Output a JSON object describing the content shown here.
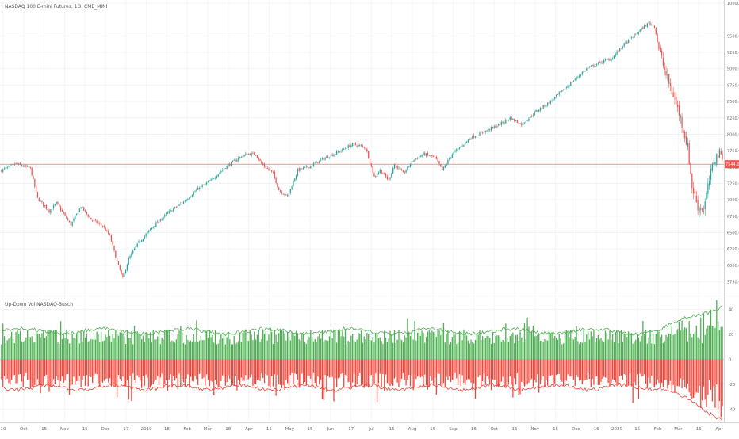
{
  "chart_data": [
    {
      "type": "candlestick",
      "title": "NASDAQ 100 E-mini Futures, 1D, CME_MINI",
      "ylim": [
        5600,
        10000
      ],
      "y_ticks": [
        5750,
        6000,
        6250,
        6500,
        6750,
        7000,
        7250,
        7500,
        7750,
        8000,
        8250,
        8500,
        8750,
        9000,
        9250,
        9500,
        10000
      ],
      "y_tick_labels": [
        "5750.00",
        "6000.00",
        "6250.00",
        "6500.00",
        "6750.00",
        "7000.00",
        "7250.00",
        "7500.00",
        "7750.00",
        "8000.00",
        "8250.00",
        "8500.00",
        "8750.00",
        "9000.00",
        "9250.00",
        "9500.00",
        "10000.00"
      ],
      "last_price": 7544.0,
      "last_price_label": "7544.00",
      "last_price_color": "#ef5350",
      "up_color": "#26a69a",
      "down_color": "#ef5350",
      "close_path": [
        [
          0,
          7450
        ],
        [
          10,
          7550
        ],
        [
          20,
          7480
        ],
        [
          25,
          7020
        ],
        [
          33,
          6830
        ],
        [
          38,
          6950
        ],
        [
          48,
          6620
        ],
        [
          55,
          6900
        ],
        [
          62,
          6700
        ],
        [
          70,
          6600
        ],
        [
          75,
          6450
        ],
        [
          80,
          6050
        ],
        [
          84,
          5800
        ],
        [
          88,
          6100
        ],
        [
          95,
          6350
        ],
        [
          105,
          6600
        ],
        [
          115,
          6800
        ],
        [
          125,
          6950
        ],
        [
          135,
          7150
        ],
        [
          145,
          7300
        ],
        [
          155,
          7500
        ],
        [
          165,
          7650
        ],
        [
          170,
          7700
        ],
        [
          176,
          7700
        ],
        [
          180,
          7550
        ],
        [
          188,
          7400
        ],
        [
          192,
          7150
        ],
        [
          198,
          7050
        ],
        [
          205,
          7450
        ],
        [
          212,
          7500
        ],
        [
          225,
          7650
        ],
        [
          235,
          7750
        ],
        [
          243,
          7850
        ],
        [
          252,
          7800
        ],
        [
          258,
          7350
        ],
        [
          262,
          7450
        ],
        [
          268,
          7300
        ],
        [
          272,
          7550
        ],
        [
          278,
          7400
        ],
        [
          285,
          7600
        ],
        [
          292,
          7700
        ],
        [
          300,
          7650
        ],
        [
          305,
          7450
        ],
        [
          312,
          7700
        ],
        [
          325,
          7950
        ],
        [
          335,
          8050
        ],
        [
          345,
          8150
        ],
        [
          352,
          8250
        ],
        [
          360,
          8150
        ],
        [
          370,
          8350
        ],
        [
          380,
          8500
        ],
        [
          395,
          8800
        ],
        [
          405,
          9000
        ],
        [
          415,
          9100
        ],
        [
          422,
          9150
        ],
        [
          430,
          9350
        ],
        [
          440,
          9550
        ],
        [
          448,
          9700
        ],
        [
          452,
          9650
        ],
        [
          455,
          9300
        ],
        [
          460,
          8900
        ],
        [
          465,
          8600
        ],
        [
          470,
          8250
        ],
        [
          475,
          7800
        ],
        [
          478,
          7200
        ],
        [
          482,
          6900
        ],
        [
          486,
          6850
        ],
        [
          490,
          7300
        ],
        [
          493,
          7600
        ],
        [
          496,
          7700
        ]
      ]
    },
    {
      "type": "bar",
      "title": "Up-Down Vol NASDAQ-Busch",
      "ylim": [
        -48,
        48
      ],
      "y_ticks": [
        40,
        20,
        0,
        -20,
        -40
      ],
      "y_tick_labels": [
        "40",
        "20",
        "0",
        "-20",
        "-40"
      ],
      "series": [
        {
          "color": "#4caf50"
        },
        {
          "color": "#f44336"
        },
        {
          "color": "#4caf50"
        },
        {
          "color": "#f44336"
        }
      ],
      "up_base": 12,
      "down_base": -11,
      "up_envelope_base": 21,
      "down_envelope_base": -21,
      "up_envelope_end": 43,
      "down_envelope_end": -46
    }
  ],
  "x_axis": {
    "tick_labels": [
      "10",
      "Oct",
      "15",
      "Nov",
      "15",
      "Dec",
      "17",
      "2019",
      "18",
      "Feb",
      "Mar",
      "18",
      "Apr",
      "15",
      "May",
      "15",
      "Jun",
      "17",
      "Jul",
      "15",
      "Aug",
      "15",
      "Sep",
      "16",
      "Oct",
      "15",
      "Nov",
      "15",
      "Dec",
      "16",
      "2020",
      "15",
      "Feb",
      "Mar",
      "16",
      "Apr"
    ]
  }
}
